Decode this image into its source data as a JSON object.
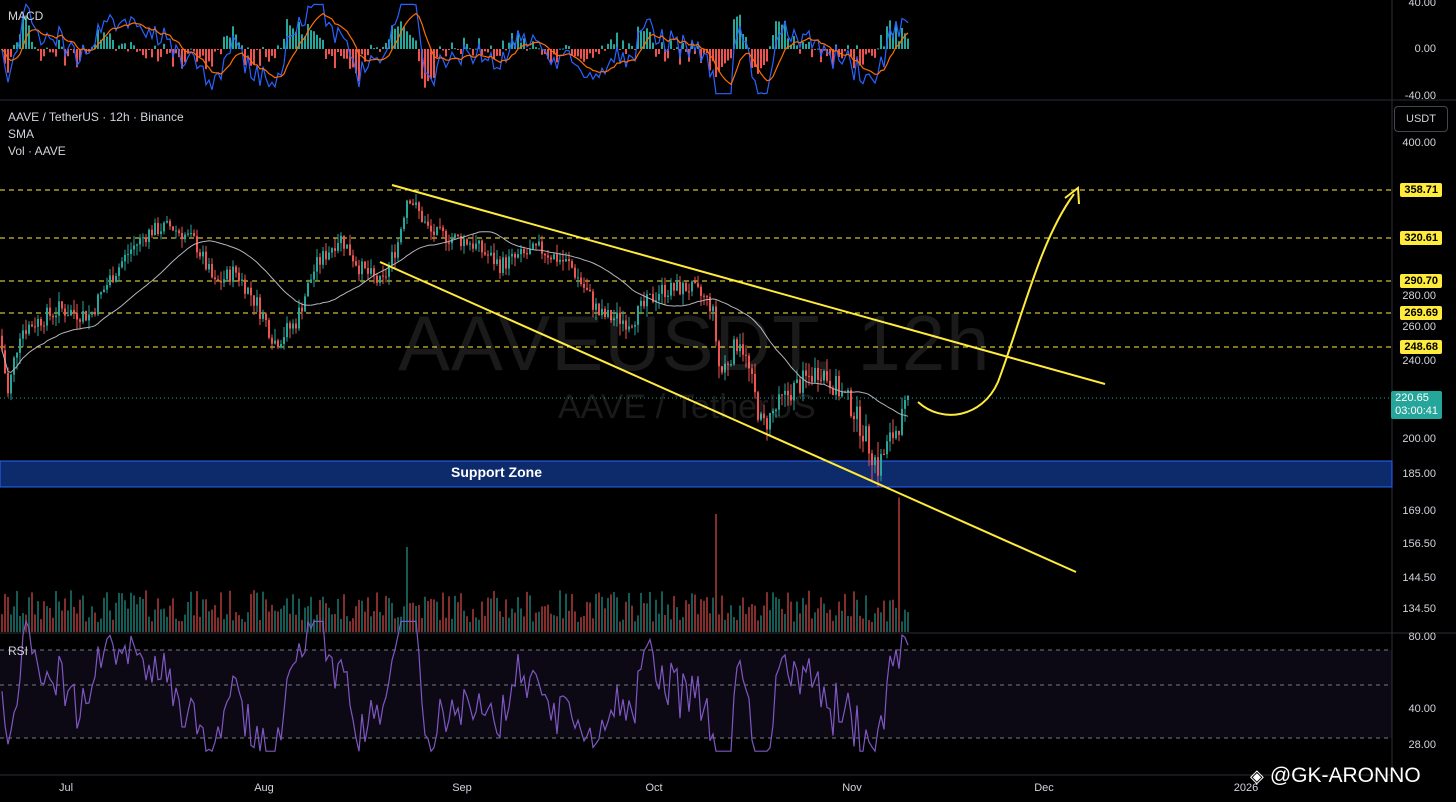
{
  "header": {
    "symbol_line": "AAVE / TetherUS · 12h · Binance",
    "indicator_sma": "SMA",
    "indicator_vol": "Vol · AAVE"
  },
  "macd": {
    "label": "MACD",
    "ticks": [
      "40.00",
      "0.00",
      "-40.00"
    ]
  },
  "rsi": {
    "label": "RSI",
    "ticks": [
      "80.00",
      "40.00",
      "28.00"
    ],
    "band_upper": 70,
    "band_lower": 30
  },
  "price_axis": {
    "currency_button": "USDT",
    "ticks": [
      "400.00",
      "280.00",
      "260.00",
      "240.00",
      "200.00",
      "185.00",
      "169.00",
      "156.50",
      "144.50",
      "134.50"
    ],
    "current_price": "220.65",
    "countdown": "03:00:41"
  },
  "time_axis": {
    "labels": [
      "Jul",
      "Aug",
      "Sep",
      "Oct",
      "Nov",
      "Dec",
      "2026"
    ]
  },
  "levels": [
    "358.71",
    "320.61",
    "290.70",
    "269.69",
    "248.68"
  ],
  "support_zone": {
    "label": "Support Zone",
    "range": [
      180,
      191
    ]
  },
  "watermark": {
    "main": "AAVEUSDT, 12h",
    "sub": "AAVE / TetherUS"
  },
  "credit": "@GK-ARONNO",
  "colors": {
    "bull": "#26a69a",
    "bear": "#ef5350",
    "level_line": "#ffeb3b",
    "support_zone": "#0d2a6b",
    "rsi_line": "#7e57c2",
    "macd_line": "#2962ff",
    "signal_line": "#ff6d00",
    "sma_line": "#b2b5be"
  },
  "chart_data": {
    "type": "candlestick",
    "title": "AAVE / TetherUS · 12h · Binance",
    "y_unit": "USDT",
    "price_anchors": [
      {
        "x": 0,
        "price": 255
      },
      {
        "x": 8,
        "price": 222
      },
      {
        "x": 20,
        "price": 258
      },
      {
        "x": 60,
        "price": 272
      },
      {
        "x": 90,
        "price": 268
      },
      {
        "x": 110,
        "price": 292
      },
      {
        "x": 130,
        "price": 312
      },
      {
        "x": 150,
        "price": 326
      },
      {
        "x": 170,
        "price": 330
      },
      {
        "x": 195,
        "price": 318
      },
      {
        "x": 215,
        "price": 288
      },
      {
        "x": 235,
        "price": 298
      },
      {
        "x": 258,
        "price": 274
      },
      {
        "x": 275,
        "price": 252
      },
      {
        "x": 295,
        "price": 262
      },
      {
        "x": 315,
        "price": 300
      },
      {
        "x": 340,
        "price": 322
      },
      {
        "x": 360,
        "price": 300
      },
      {
        "x": 382,
        "price": 288
      },
      {
        "x": 398,
        "price": 318
      },
      {
        "x": 408,
        "price": 356
      },
      {
        "x": 430,
        "price": 325
      },
      {
        "x": 470,
        "price": 318
      },
      {
        "x": 500,
        "price": 302
      },
      {
        "x": 540,
        "price": 313
      },
      {
        "x": 570,
        "price": 302
      },
      {
        "x": 600,
        "price": 268
      },
      {
        "x": 630,
        "price": 264
      },
      {
        "x": 660,
        "price": 284
      },
      {
        "x": 690,
        "price": 286
      },
      {
        "x": 712,
        "price": 274
      },
      {
        "x": 720,
        "price": 232
      },
      {
        "x": 740,
        "price": 254
      },
      {
        "x": 762,
        "price": 206
      },
      {
        "x": 790,
        "price": 224
      },
      {
        "x": 820,
        "price": 236
      },
      {
        "x": 850,
        "price": 218
      },
      {
        "x": 878,
        "price": 188
      },
      {
        "x": 895,
        "price": 204
      },
      {
        "x": 912,
        "price": 220.65
      }
    ],
    "horizontal_levels": [
      358.71,
      320.61,
      290.7,
      269.69,
      248.68
    ],
    "current_price": 220.65,
    "support_zone": [
      180,
      191
    ],
    "trendlines": [
      {
        "name": "upper",
        "from": {
          "x": 392,
          "price": 368
        },
        "to": {
          "x": 1105,
          "price": 237
        }
      },
      {
        "name": "lower",
        "from": {
          "x": 380,
          "price": 304
        },
        "to": {
          "x": 1076,
          "price": 148
        }
      }
    ],
    "projection": {
      "from_price": 220.65,
      "to_price": 362
    },
    "volume_spikes": [
      {
        "x": 716,
        "relative": 1.0
      },
      {
        "x": 900,
        "relative": 1.14
      },
      {
        "x": 408,
        "relative": 0.72
      }
    ],
    "rsi_range": [
      20,
      85
    ],
    "macd_range": [
      -40,
      40
    ]
  }
}
